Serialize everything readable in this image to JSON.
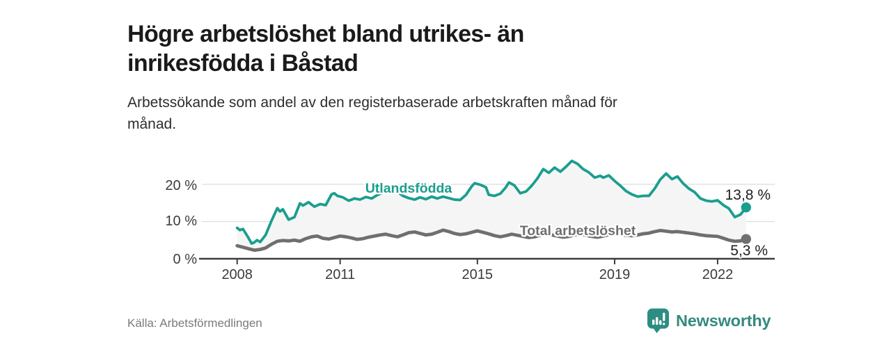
{
  "header": {
    "title_lines": [
      "Högre arbetslöshet bland utrikes- än",
      "inrikesfödda i Båstad"
    ],
    "subtitle_lines": [
      "Arbetssökande som andel av den registerbaserade arbetskraften månad för",
      "månad."
    ]
  },
  "footer": {
    "source": "Källa: Arbetsförmedlingen",
    "brand_name": "Newsworthy"
  },
  "colors": {
    "accent_teal": "#1a9e8e",
    "series_gray": "#6f6f6f",
    "band_fill": "#f5f5f5",
    "gridline": "#dcdcdc",
    "axis": "#3d3d3d",
    "logo_teal": "#2d8d83",
    "wordmark_teal": "#35897f"
  },
  "chart_data": {
    "type": "line",
    "title": "Högre arbetslöshet bland utrikes- än inrikesfödda i Båstad",
    "subtitle": "Arbetssökande som andel av den registerbaserade arbetskraften månad för månad.",
    "source": "Källa: Arbetsförmedlingen",
    "grid": true,
    "legend_position": "inline-labels",
    "x_axis": {
      "tick_years": [
        2008,
        2011,
        2015,
        2019,
        2022
      ],
      "tick_labels": [
        "2008",
        "2011",
        "2015",
        "2019",
        "2022"
      ]
    },
    "y_axis": {
      "tick_values": [
        0,
        10,
        20
      ],
      "tick_labels": [
        "0 %",
        "10 %",
        "20 %"
      ],
      "unit": "%"
    },
    "xlim_years": [
      2008.0,
      2023.3
    ],
    "ylim": [
      0,
      27.5
    ],
    "band_fill_between_series": true,
    "series": [
      {
        "name": "Utlandsfödda",
        "color": "#1a9e8e",
        "end_value_label": "13,8 %",
        "end_value": 13.8,
        "points": [
          [
            2008.0,
            8.3
          ],
          [
            2008.08,
            7.7
          ],
          [
            2008.17,
            8.0
          ],
          [
            2008.33,
            5.6
          ],
          [
            2008.42,
            4.1
          ],
          [
            2008.5,
            4.4
          ],
          [
            2008.58,
            5.0
          ],
          [
            2008.67,
            4.5
          ],
          [
            2008.83,
            6.4
          ],
          [
            2009.0,
            10.2
          ],
          [
            2009.17,
            13.6
          ],
          [
            2009.25,
            12.7
          ],
          [
            2009.33,
            13.3
          ],
          [
            2009.5,
            10.5
          ],
          [
            2009.67,
            11.2
          ],
          [
            2009.83,
            14.9
          ],
          [
            2009.92,
            14.3
          ],
          [
            2010.08,
            15.2
          ],
          [
            2010.25,
            14.0
          ],
          [
            2010.42,
            14.7
          ],
          [
            2010.58,
            14.4
          ],
          [
            2010.75,
            17.3
          ],
          [
            2010.83,
            17.6
          ],
          [
            2010.92,
            16.9
          ],
          [
            2011.08,
            16.5
          ],
          [
            2011.25,
            15.6
          ],
          [
            2011.42,
            16.2
          ],
          [
            2011.58,
            15.9
          ],
          [
            2011.75,
            16.6
          ],
          [
            2011.92,
            16.2
          ],
          [
            2012.08,
            17.1
          ],
          [
            2012.33,
            18.1
          ],
          [
            2012.5,
            18.8
          ],
          [
            2012.67,
            18.0
          ],
          [
            2012.83,
            16.9
          ],
          [
            2013.0,
            16.3
          ],
          [
            2013.17,
            15.9
          ],
          [
            2013.33,
            16.5
          ],
          [
            2013.5,
            16.0
          ],
          [
            2013.67,
            16.7
          ],
          [
            2013.83,
            16.2
          ],
          [
            2014.0,
            16.7
          ],
          [
            2014.17,
            16.3
          ],
          [
            2014.33,
            15.9
          ],
          [
            2014.5,
            15.8
          ],
          [
            2014.67,
            17.2
          ],
          [
            2014.83,
            19.4
          ],
          [
            2014.92,
            20.3
          ],
          [
            2015.08,
            19.9
          ],
          [
            2015.25,
            19.2
          ],
          [
            2015.33,
            17.2
          ],
          [
            2015.5,
            16.9
          ],
          [
            2015.67,
            17.5
          ],
          [
            2015.83,
            19.2
          ],
          [
            2015.92,
            20.5
          ],
          [
            2016.08,
            19.7
          ],
          [
            2016.25,
            17.6
          ],
          [
            2016.42,
            18.1
          ],
          [
            2016.58,
            19.6
          ],
          [
            2016.75,
            21.6
          ],
          [
            2016.92,
            24.1
          ],
          [
            2017.08,
            23.1
          ],
          [
            2017.25,
            24.5
          ],
          [
            2017.42,
            23.4
          ],
          [
            2017.58,
            24.7
          ],
          [
            2017.75,
            26.3
          ],
          [
            2017.92,
            25.5
          ],
          [
            2018.08,
            24.1
          ],
          [
            2018.25,
            23.2
          ],
          [
            2018.42,
            21.8
          ],
          [
            2018.58,
            22.3
          ],
          [
            2018.67,
            21.8
          ],
          [
            2018.83,
            22.4
          ],
          [
            2019.0,
            20.9
          ],
          [
            2019.17,
            19.6
          ],
          [
            2019.33,
            18.2
          ],
          [
            2019.5,
            17.3
          ],
          [
            2019.67,
            16.7
          ],
          [
            2019.83,
            16.9
          ],
          [
            2020.0,
            16.9
          ],
          [
            2020.17,
            18.9
          ],
          [
            2020.33,
            21.3
          ],
          [
            2020.5,
            22.9
          ],
          [
            2020.67,
            21.4
          ],
          [
            2020.83,
            22.1
          ],
          [
            2021.0,
            20.2
          ],
          [
            2021.17,
            18.8
          ],
          [
            2021.33,
            17.9
          ],
          [
            2021.5,
            16.2
          ],
          [
            2021.67,
            15.6
          ],
          [
            2021.83,
            15.4
          ],
          [
            2022.0,
            15.7
          ],
          [
            2022.17,
            14.4
          ],
          [
            2022.33,
            13.5
          ],
          [
            2022.5,
            11.2
          ],
          [
            2022.67,
            11.9
          ],
          [
            2022.83,
            13.8
          ]
        ]
      },
      {
        "name": "Total arbetslöshet",
        "color": "#6f6f6f",
        "end_value_label": "5,3 %",
        "end_value": 5.3,
        "points": [
          [
            2008.0,
            3.5
          ],
          [
            2008.17,
            3.1
          ],
          [
            2008.33,
            2.7
          ],
          [
            2008.5,
            2.3
          ],
          [
            2008.67,
            2.5
          ],
          [
            2008.83,
            2.9
          ],
          [
            2009.0,
            3.9
          ],
          [
            2009.17,
            4.7
          ],
          [
            2009.33,
            4.9
          ],
          [
            2009.5,
            4.8
          ],
          [
            2009.67,
            5.0
          ],
          [
            2009.83,
            4.7
          ],
          [
            2010.0,
            5.4
          ],
          [
            2010.17,
            5.9
          ],
          [
            2010.33,
            6.1
          ],
          [
            2010.5,
            5.5
          ],
          [
            2010.67,
            5.3
          ],
          [
            2010.83,
            5.7
          ],
          [
            2011.0,
            6.1
          ],
          [
            2011.17,
            5.9
          ],
          [
            2011.33,
            5.6
          ],
          [
            2011.5,
            5.2
          ],
          [
            2011.67,
            5.4
          ],
          [
            2011.83,
            5.8
          ],
          [
            2012.0,
            6.1
          ],
          [
            2012.17,
            6.4
          ],
          [
            2012.33,
            6.6
          ],
          [
            2012.5,
            6.2
          ],
          [
            2012.67,
            5.9
          ],
          [
            2012.83,
            6.4
          ],
          [
            2013.0,
            7.0
          ],
          [
            2013.17,
            7.2
          ],
          [
            2013.33,
            6.8
          ],
          [
            2013.5,
            6.4
          ],
          [
            2013.67,
            6.6
          ],
          [
            2013.83,
            7.1
          ],
          [
            2014.0,
            7.7
          ],
          [
            2014.17,
            7.3
          ],
          [
            2014.33,
            6.8
          ],
          [
            2014.5,
            6.5
          ],
          [
            2014.67,
            6.7
          ],
          [
            2014.83,
            7.1
          ],
          [
            2015.0,
            7.5
          ],
          [
            2015.17,
            7.1
          ],
          [
            2015.33,
            6.7
          ],
          [
            2015.5,
            6.2
          ],
          [
            2015.67,
            5.9
          ],
          [
            2015.83,
            6.2
          ],
          [
            2016.0,
            6.6
          ],
          [
            2016.17,
            6.3
          ],
          [
            2016.33,
            6.0
          ],
          [
            2016.5,
            5.7
          ],
          [
            2016.67,
            5.9
          ],
          [
            2016.83,
            6.3
          ],
          [
            2017.0,
            6.7
          ],
          [
            2017.17,
            6.4
          ],
          [
            2017.33,
            6.1
          ],
          [
            2017.5,
            5.8
          ],
          [
            2017.67,
            6.0
          ],
          [
            2017.83,
            6.4
          ],
          [
            2018.0,
            6.7
          ],
          [
            2018.17,
            6.3
          ],
          [
            2018.33,
            6.0
          ],
          [
            2018.5,
            5.8
          ],
          [
            2018.67,
            6.1
          ],
          [
            2018.83,
            6.5
          ],
          [
            2019.0,
            6.8
          ],
          [
            2019.17,
            6.5
          ],
          [
            2019.33,
            6.3
          ],
          [
            2019.5,
            6.2
          ],
          [
            2019.67,
            6.4
          ],
          [
            2019.83,
            6.7
          ],
          [
            2020.0,
            6.9
          ],
          [
            2020.17,
            7.3
          ],
          [
            2020.33,
            7.6
          ],
          [
            2020.5,
            7.4
          ],
          [
            2020.67,
            7.2
          ],
          [
            2020.83,
            7.3
          ],
          [
            2021.0,
            7.1
          ],
          [
            2021.17,
            6.9
          ],
          [
            2021.33,
            6.7
          ],
          [
            2021.5,
            6.4
          ],
          [
            2021.67,
            6.2
          ],
          [
            2021.83,
            6.1
          ],
          [
            2022.0,
            6.0
          ],
          [
            2022.17,
            5.5
          ],
          [
            2022.33,
            5.0
          ],
          [
            2022.5,
            4.7
          ],
          [
            2022.67,
            4.8
          ],
          [
            2022.83,
            5.3
          ]
        ]
      }
    ]
  }
}
